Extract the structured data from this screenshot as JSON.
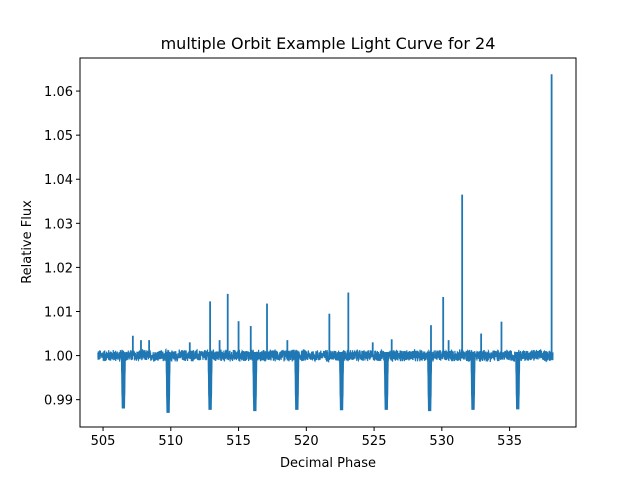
{
  "chart_data": {
    "type": "line",
    "title": "multiple Orbit Example Light Curve for 24",
    "xlabel": "Decimal Phase",
    "ylabel": "Relative Flux",
    "xlim": [
      503.3,
      539.9
    ],
    "ylim": [
      0.9838,
      1.0675
    ],
    "xticks": [
      505,
      510,
      515,
      520,
      525,
      530,
      535
    ],
    "xtick_labels": [
      "505",
      "510",
      "515",
      "520",
      "525",
      "530",
      "535"
    ],
    "yticks": [
      0.99,
      1.0,
      1.01,
      1.02,
      1.03,
      1.04,
      1.05,
      1.06
    ],
    "ytick_labels": [
      "0.99",
      "1.00",
      "1.01",
      "1.02",
      "1.03",
      "1.04",
      "1.05",
      "1.06"
    ],
    "grid": false,
    "series_color": "#1f77b4",
    "baseline": 1.0,
    "data_range": [
      504.6,
      538.2
    ],
    "noise_band": [
      0.9985,
      1.0015
    ],
    "transits": [
      {
        "x": 506.5,
        "depth": 0.9888
      },
      {
        "x": 509.8,
        "depth": 0.9878
      },
      {
        "x": 512.9,
        "depth": 0.9885
      },
      {
        "x": 516.2,
        "depth": 0.9882
      },
      {
        "x": 519.3,
        "depth": 0.9885
      },
      {
        "x": 522.6,
        "depth": 0.9884
      },
      {
        "x": 525.9,
        "depth": 0.9885
      },
      {
        "x": 529.1,
        "depth": 0.9882
      },
      {
        "x": 532.3,
        "depth": 0.9885
      },
      {
        "x": 535.6,
        "depth": 0.9886
      }
    ],
    "flares": [
      {
        "x": 507.2,
        "peak": 1.0045
      },
      {
        "x": 507.8,
        "peak": 1.0035
      },
      {
        "x": 508.4,
        "peak": 1.0035
      },
      {
        "x": 511.4,
        "peak": 1.003
      },
      {
        "x": 512.9,
        "peak": 1.0123
      },
      {
        "x": 513.6,
        "peak": 1.0035
      },
      {
        "x": 514.2,
        "peak": 1.014
      },
      {
        "x": 515.0,
        "peak": 1.0078
      },
      {
        "x": 515.9,
        "peak": 1.0067
      },
      {
        "x": 517.1,
        "peak": 1.0118
      },
      {
        "x": 518.6,
        "peak": 1.0035
      },
      {
        "x": 521.7,
        "peak": 1.0095
      },
      {
        "x": 523.1,
        "peak": 1.0143
      },
      {
        "x": 524.9,
        "peak": 1.003
      },
      {
        "x": 526.3,
        "peak": 1.0037
      },
      {
        "x": 529.2,
        "peak": 1.0069
      },
      {
        "x": 530.1,
        "peak": 1.0133
      },
      {
        "x": 530.5,
        "peak": 1.0035
      },
      {
        "x": 531.5,
        "peak": 1.0365
      },
      {
        "x": 532.9,
        "peak": 1.005
      },
      {
        "x": 534.4,
        "peak": 1.0077
      },
      {
        "x": 538.1,
        "peak": 1.0638
      }
    ]
  }
}
